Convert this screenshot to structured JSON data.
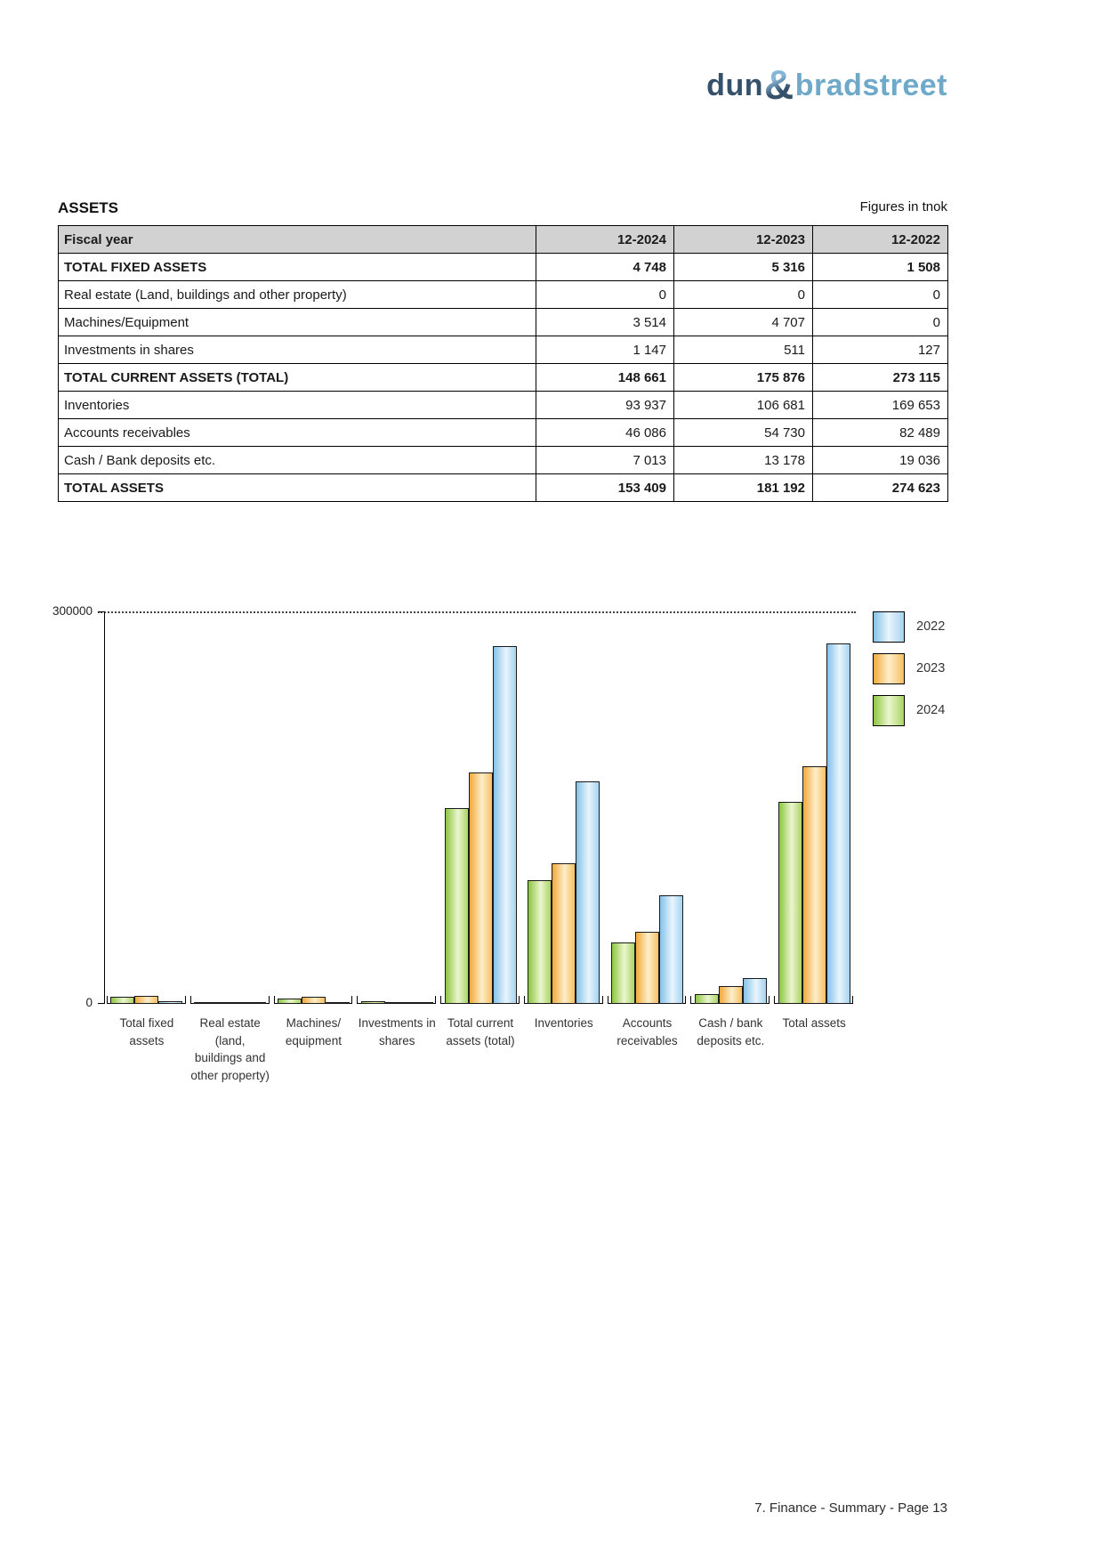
{
  "logo": {
    "part1": "dun",
    "amp": "&",
    "part2": "bradstreet"
  },
  "header": {
    "title": "ASSETS",
    "unit_note": "Figures in tnok"
  },
  "table": {
    "columns": [
      "Fiscal year",
      "12-2024",
      "12-2023",
      "12-2022"
    ],
    "rows": [
      {
        "label": "TOTAL FIXED ASSETS",
        "bold": true,
        "values": [
          "4 748",
          "5 316",
          "1 508"
        ]
      },
      {
        "label": "Real estate (Land, buildings and other property)",
        "bold": false,
        "values": [
          "0",
          "0",
          "0"
        ]
      },
      {
        "label": "Machines/Equipment",
        "bold": false,
        "values": [
          "3 514",
          "4 707",
          "0"
        ]
      },
      {
        "label": "Investments in shares",
        "bold": false,
        "values": [
          "1 147",
          "511",
          "127"
        ]
      },
      {
        "label": "TOTAL CURRENT ASSETS (TOTAL)",
        "bold": true,
        "values": [
          "148 661",
          "175 876",
          "273 115"
        ]
      },
      {
        "label": "Inventories",
        "bold": false,
        "values": [
          "93 937",
          "106 681",
          "169 653"
        ]
      },
      {
        "label": "Accounts receivables",
        "bold": false,
        "values": [
          "46 086",
          "54 730",
          "82 489"
        ]
      },
      {
        "label": "Cash / Bank deposits etc.",
        "bold": false,
        "values": [
          "7 013",
          "13 178",
          "19 036"
        ]
      },
      {
        "label": "TOTAL ASSETS",
        "bold": true,
        "values": [
          "153 409",
          "181 192",
          "274 623"
        ]
      }
    ]
  },
  "chart_data": {
    "type": "bar",
    "title": "",
    "xlabel": "",
    "ylabel": "",
    "ylim": [
      0,
      300000
    ],
    "ytick_labels": [
      "0",
      "300000"
    ],
    "grid": "dotted line at 300000 only",
    "legend_position": "top-right",
    "legend": [
      {
        "label": "2022",
        "series": "blue"
      },
      {
        "label": "2023",
        "series": "orange"
      },
      {
        "label": "2024",
        "series": "green"
      }
    ],
    "categories": [
      [
        "Total fixed",
        "assets"
      ],
      [
        "Real estate",
        "(land,",
        "buildings and",
        "other property)"
      ],
      [
        "Machines/",
        "equipment"
      ],
      [
        "Investments in",
        "shares"
      ],
      [
        "Total current",
        "assets (total)"
      ],
      [
        "Inventories"
      ],
      [
        "Accounts",
        "receivables"
      ],
      [
        "Cash / bank",
        "deposits etc."
      ],
      [
        "Total assets"
      ]
    ],
    "series": [
      {
        "name": "2024",
        "color_key": "green",
        "values": [
          4748,
          0,
          3514,
          1147,
          148661,
          93937,
          46086,
          7013,
          153409
        ]
      },
      {
        "name": "2023",
        "color_key": "orange",
        "values": [
          5316,
          0,
          4707,
          511,
          175876,
          106681,
          54730,
          13178,
          181192
        ]
      },
      {
        "name": "2022",
        "color_key": "blue",
        "values": [
          1508,
          0,
          0,
          127,
          273115,
          169653,
          82489,
          19036,
          274623
        ]
      }
    ]
  },
  "colors": {
    "green": {
      "left": "#8cc63f",
      "mid": "#ebf6cf",
      "right": "#abd565"
    },
    "orange": {
      "left": "#f2a93b",
      "mid": "#fdeec9",
      "right": "#f6bf62"
    },
    "blue": {
      "left": "#84c2e8",
      "mid": "#e9f5fd",
      "right": "#a5d4f0"
    },
    "logo_dark": "#35506b",
    "logo_light": "#6ea9c9",
    "table_header_bg": "#d2d2d2"
  },
  "footer": {
    "text": "7. Finance - Summary - Page 13"
  }
}
